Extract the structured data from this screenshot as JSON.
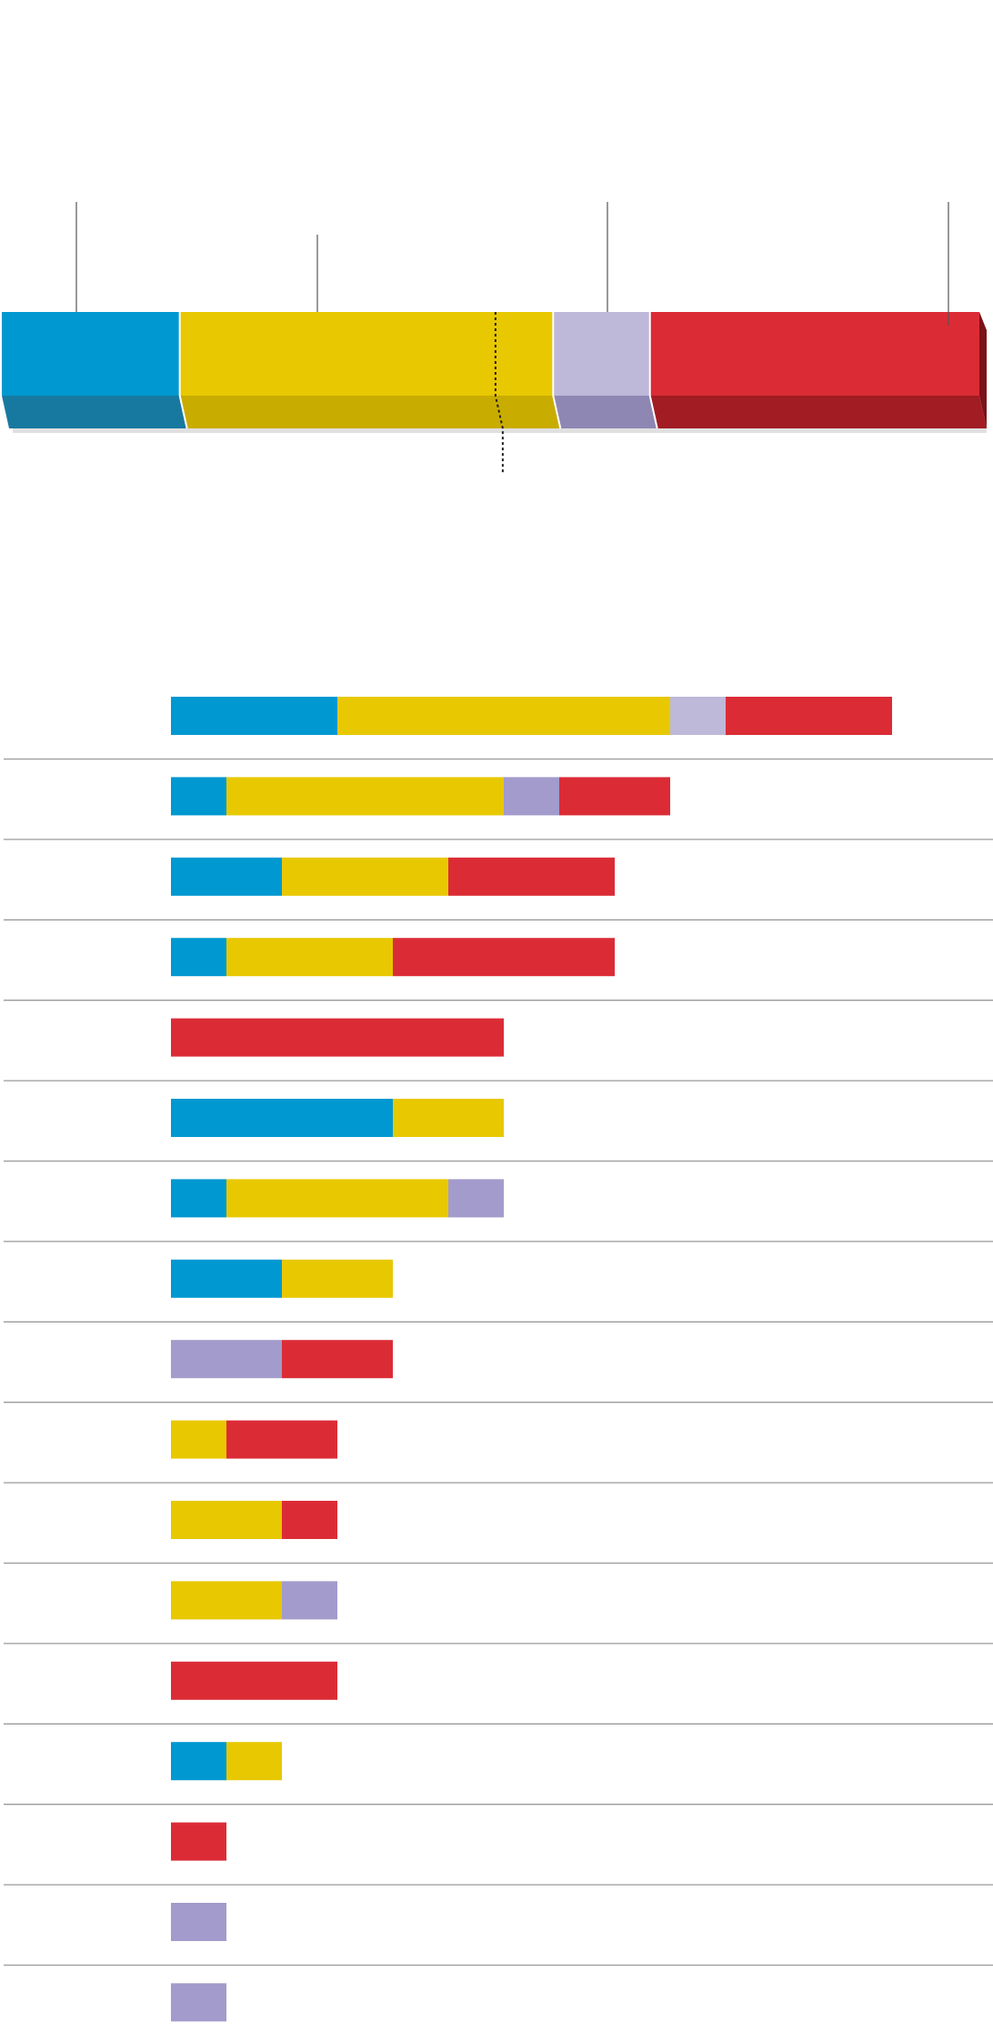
{
  "colors": {
    "blue": "#0098D1",
    "blue_dark": "#1779A0",
    "yellow": "#E8C800",
    "yellow_dark": "#C9AC00",
    "lavender": "#BEB8D9",
    "lavender_dark": "#8E87B4",
    "purple": "#A29BCB",
    "red": "#DB2C36",
    "red_dark": "#A11C23",
    "rule": "#9A9A9A",
    "leader": "#555555"
  },
  "chart_data": [
    {
      "type": "bar",
      "orientation": "horizontal",
      "stacked": true,
      "unit_total": 100,
      "segments": [
        {
          "key": "blue",
          "value": 18.2
        },
        {
          "key": "yellow",
          "value": 38.2
        },
        {
          "key": "lavender",
          "value": 9.9
        },
        {
          "key": "red",
          "value": 33.7
        }
      ],
      "marker": {
        "position": 50.5,
        "style": "dotted"
      }
    },
    {
      "type": "bar",
      "orientation": "horizontal",
      "stacked": true,
      "xlim": [
        0,
        15
      ],
      "rows": [
        {
          "segments": [
            {
              "key": "blue",
              "value": 3
            },
            {
              "key": "yellow",
              "value": 6
            },
            {
              "key": "lavender",
              "value": 1
            },
            {
              "key": "red",
              "value": 3
            }
          ]
        },
        {
          "segments": [
            {
              "key": "blue",
              "value": 1
            },
            {
              "key": "yellow",
              "value": 5
            },
            {
              "key": "purple",
              "value": 1
            },
            {
              "key": "red",
              "value": 2
            }
          ]
        },
        {
          "segments": [
            {
              "key": "blue",
              "value": 2
            },
            {
              "key": "yellow",
              "value": 3
            },
            {
              "key": "red",
              "value": 3
            }
          ]
        },
        {
          "segments": [
            {
              "key": "blue",
              "value": 1
            },
            {
              "key": "yellow",
              "value": 3
            },
            {
              "key": "red",
              "value": 4
            }
          ]
        },
        {
          "segments": [
            {
              "key": "red",
              "value": 6
            }
          ]
        },
        {
          "segments": [
            {
              "key": "blue",
              "value": 4
            },
            {
              "key": "yellow",
              "value": 2
            }
          ]
        },
        {
          "segments": [
            {
              "key": "blue",
              "value": 1
            },
            {
              "key": "yellow",
              "value": 4
            },
            {
              "key": "purple",
              "value": 1
            }
          ]
        },
        {
          "segments": [
            {
              "key": "blue",
              "value": 2
            },
            {
              "key": "yellow",
              "value": 2
            }
          ]
        },
        {
          "segments": [
            {
              "key": "purple",
              "value": 2
            },
            {
              "key": "red",
              "value": 2
            }
          ]
        },
        {
          "segments": [
            {
              "key": "yellow",
              "value": 1
            },
            {
              "key": "red",
              "value": 2
            }
          ]
        },
        {
          "segments": [
            {
              "key": "yellow",
              "value": 2
            },
            {
              "key": "red",
              "value": 1
            }
          ]
        },
        {
          "segments": [
            {
              "key": "yellow",
              "value": 2
            },
            {
              "key": "purple",
              "value": 1
            }
          ]
        },
        {
          "segments": [
            {
              "key": "red",
              "value": 3
            }
          ]
        },
        {
          "segments": [
            {
              "key": "blue",
              "value": 1
            },
            {
              "key": "yellow",
              "value": 1
            }
          ]
        },
        {
          "segments": [
            {
              "key": "red",
              "value": 1
            }
          ]
        },
        {
          "segments": [
            {
              "key": "purple",
              "value": 1
            }
          ]
        },
        {
          "segments": [
            {
              "key": "purple",
              "value": 1
            }
          ]
        }
      ]
    }
  ]
}
